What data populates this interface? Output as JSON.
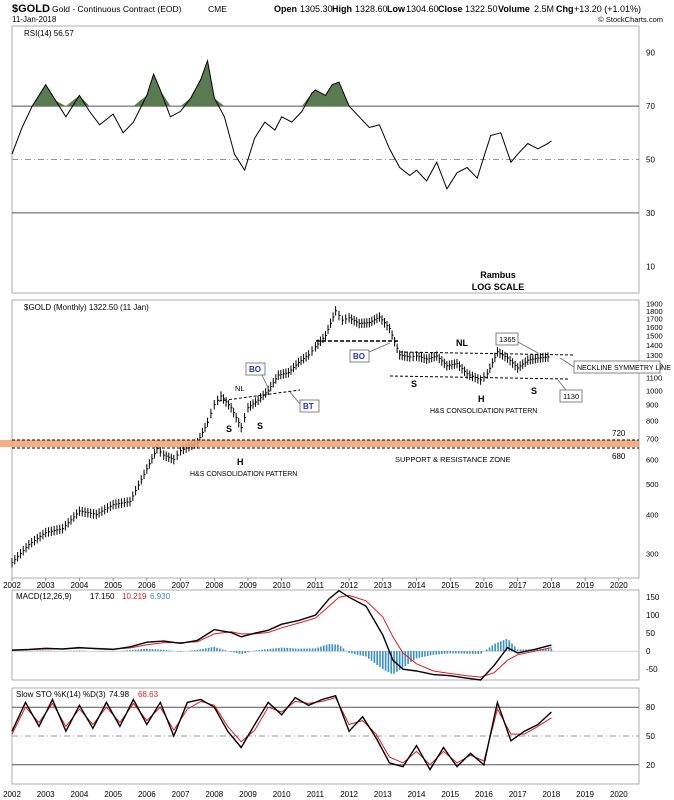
{
  "header": {
    "symbol": "$GOLD",
    "name": "Gold - Continuous Contract (EOD)",
    "exchange": "CME",
    "date": "11-Jan-2018",
    "open_label": "Open",
    "open": "1305.30",
    "high_label": "High",
    "high": "1328.60",
    "low_label": "Low",
    "low": "1304.60",
    "close_label": "Close",
    "close": "1322.50",
    "volume_label": "Volume",
    "volume": "2.5M",
    "chg_label": "Chg",
    "chg": "+13.20 (+1.01%)",
    "copyright": "© StockCharts.com"
  },
  "colors": {
    "price": "#000000",
    "rsi_fill": "#5a7a52",
    "macd_signal": "#e11b1b",
    "histogram": "#3a8fc4",
    "sto_d": "#e11b1b",
    "zone": "#f5a06c",
    "annotation_blue": "#2233bb"
  },
  "chart_data": [
    {
      "type": "line",
      "panel": "rsi",
      "legend": "RSI(14) 56.57",
      "ylim": [
        0,
        100
      ],
      "y_ticks": [
        "90",
        "70",
        "50",
        "30",
        "10"
      ],
      "reference_lines": [
        70,
        50,
        30
      ],
      "series": [
        {
          "x": [
            2002.0,
            2002.3,
            2002.6,
            2003.0,
            2003.3,
            2003.6,
            2004.0,
            2004.3,
            2004.6,
            2005.0,
            2005.3,
            2005.6,
            2006.0,
            2006.2,
            2006.4,
            2006.7,
            2007.0,
            2007.3,
            2007.6,
            2007.8,
            2008.0,
            2008.3,
            2008.6,
            2008.9,
            2009.2,
            2009.5,
            2009.8,
            2010.0,
            2010.3,
            2010.6,
            2010.9,
            2011.0,
            2011.3,
            2011.5,
            2011.7,
            2012.0,
            2012.3,
            2012.6,
            2012.9,
            2013.2,
            2013.5,
            2013.8,
            2014.0,
            2014.3,
            2014.6,
            2014.9,
            2015.2,
            2015.5,
            2015.8,
            2016.0,
            2016.2,
            2016.5,
            2016.8,
            2017.0,
            2017.3,
            2017.6,
            2017.9,
            2018.0
          ],
          "values": [
            52,
            62,
            70,
            78,
            72,
            66,
            74,
            68,
            63,
            67,
            60,
            64,
            74,
            82,
            76,
            66,
            68,
            73,
            80,
            87,
            73,
            66,
            52,
            46,
            58,
            64,
            61,
            66,
            64,
            68,
            75,
            76,
            74,
            78,
            79,
            70,
            66,
            62,
            63,
            54,
            47,
            44,
            46,
            42,
            49,
            39,
            45,
            47,
            43,
            51,
            59,
            60,
            49,
            52,
            56,
            54,
            56,
            57
          ]
        }
      ],
      "fill_above": 70
    },
    {
      "type": "line",
      "panel": "price",
      "legend": "$GOLD (Monthly) 1322.50 (11 Jan)",
      "scale": "log",
      "ylim": [
        250,
        1950
      ],
      "y_ticks": [
        "1900",
        "1800",
        "1700",
        "1600",
        "1500",
        "1400",
        "1300",
        "1200",
        "1100",
        "1000",
        "900",
        "800",
        "700",
        "600",
        "500",
        "400",
        "300"
      ],
      "x_ticks": [
        "2002",
        "2003",
        "2004",
        "2005",
        "2006",
        "2007",
        "2008",
        "2009",
        "2010",
        "2011",
        "2012",
        "2013",
        "2014",
        "2015",
        "2016",
        "2017",
        "2018",
        "2019",
        "2020"
      ],
      "series": [
        {
          "x": [
            2002.0,
            2002.5,
            2003.0,
            2003.5,
            2004.0,
            2004.5,
            2005.0,
            2005.5,
            2006.0,
            2006.3,
            2006.5,
            2006.8,
            2007.0,
            2007.5,
            2007.8,
            2008.0,
            2008.2,
            2008.5,
            2008.8,
            2009.0,
            2009.3,
            2009.6,
            2009.9,
            2010.2,
            2010.5,
            2010.8,
            2011.0,
            2011.3,
            2011.6,
            2011.8,
            2012.0,
            2012.3,
            2012.6,
            2012.9,
            2013.2,
            2013.5,
            2013.8,
            2014.0,
            2014.3,
            2014.6,
            2014.9,
            2015.2,
            2015.5,
            2015.9,
            2016.1,
            2016.4,
            2016.7,
            2017.0,
            2017.3,
            2017.6,
            2017.9,
            2018.0
          ],
          "values": [
            280,
            320,
            350,
            360,
            410,
            400,
            430,
            440,
            560,
            650,
            620,
            600,
            640,
            680,
            790,
            900,
            960,
            880,
            760,
            880,
            930,
            1000,
            1120,
            1140,
            1230,
            1300,
            1380,
            1500,
            1800,
            1680,
            1710,
            1640,
            1650,
            1720,
            1580,
            1300,
            1280,
            1290,
            1260,
            1290,
            1200,
            1220,
            1130,
            1080,
            1130,
            1330,
            1270,
            1180,
            1250,
            1270,
            1280,
            1322
          ]
        }
      ],
      "zone": {
        "top": 720,
        "bottom": 680,
        "label": "SUPPORT & RESISTANCE ZONE",
        "top_label": "720",
        "bottom_label": "680"
      },
      "annotations": {
        "rambus": "Rambus",
        "log_scale": "LOG SCALE",
        "nl_left": "NL",
        "s_left_1": "S",
        "s_left_2": "S",
        "h_left": "H",
        "bo_left": "BO",
        "bt_left": "BT",
        "hs_left": "H&S CONSOLIDATION PATTERN",
        "bo_mid": "BO",
        "nl_right": "NL",
        "s_right_1": "S",
        "h_right": "H",
        "s_right_2": "S",
        "hs_right": "H&S CONSOLIDATION PATTERN",
        "box_1365": "1365",
        "box_1130": "1130",
        "neckline_symmetry": "NECKLINE SYMMETRY LINE"
      }
    },
    {
      "type": "line",
      "panel": "macd",
      "legend_label": "MACD(12,26,9)",
      "legend_macd": "17.150",
      "legend_signal": "10.219",
      "legend_hist": "6.930",
      "ylim": [
        -80,
        170
      ],
      "y_ticks": [
        "150",
        "100",
        "50",
        "0",
        "-50"
      ],
      "series": [
        {
          "x": [
            2002.0,
            2002.5,
            2003.0,
            2003.5,
            2004.0,
            2004.5,
            2005.0,
            2005.5,
            2006.0,
            2006.5,
            2007.0,
            2007.5,
            2008.0,
            2008.5,
            2008.8,
            2009.2,
            2009.6,
            2010.0,
            2010.5,
            2011.0,
            2011.4,
            2011.7,
            2012.0,
            2012.5,
            2013.0,
            2013.3,
            2013.6,
            2014.0,
            2014.5,
            2015.0,
            2015.5,
            2015.9,
            2016.3,
            2016.7,
            2017.0,
            2017.5,
            2018.0
          ],
          "values": [
            3,
            5,
            8,
            6,
            10,
            7,
            5,
            12,
            25,
            28,
            22,
            30,
            60,
            52,
            40,
            50,
            58,
            75,
            85,
            100,
            145,
            168,
            150,
            125,
            45,
            -25,
            -50,
            -55,
            -65,
            -68,
            -75,
            -80,
            -40,
            10,
            -5,
            5,
            17
          ]
        },
        {
          "x": [
            2002.0,
            2002.5,
            2003.0,
            2003.5,
            2004.0,
            2004.5,
            2005.0,
            2005.5,
            2006.0,
            2006.5,
            2007.0,
            2007.5,
            2008.0,
            2008.5,
            2008.8,
            2009.2,
            2009.6,
            2010.0,
            2010.5,
            2011.0,
            2011.4,
            2011.7,
            2012.0,
            2012.5,
            2013.0,
            2013.3,
            2013.6,
            2014.0,
            2014.5,
            2015.0,
            2015.5,
            2015.9,
            2016.3,
            2016.7,
            2017.0,
            2017.5,
            2018.0
          ],
          "values": [
            2,
            4,
            6,
            6,
            8,
            8,
            6,
            9,
            18,
            24,
            24,
            26,
            48,
            54,
            48,
            48,
            52,
            65,
            78,
            92,
            125,
            150,
            155,
            140,
            95,
            40,
            -5,
            -35,
            -55,
            -62,
            -68,
            -72,
            -60,
            -25,
            -10,
            0,
            10
          ]
        }
      ]
    },
    {
      "type": "line",
      "panel": "sto",
      "legend_label": "Slow STO %K(14) %D(3)",
      "legend_k": "74.98",
      "legend_d": "68.63",
      "ylim": [
        0,
        100
      ],
      "y_ticks": [
        "80",
        "50",
        "20"
      ],
      "reference_lines": [
        80,
        50,
        20
      ],
      "series": [
        {
          "x": [
            2002.0,
            2002.4,
            2002.8,
            2003.2,
            2003.6,
            2004.0,
            2004.4,
            2004.8,
            2005.2,
            2005.6,
            2006.0,
            2006.4,
            2006.8,
            2007.2,
            2007.6,
            2008.0,
            2008.4,
            2008.8,
            2009.2,
            2009.6,
            2010.0,
            2010.4,
            2010.8,
            2011.2,
            2011.6,
            2012.0,
            2012.4,
            2012.8,
            2013.2,
            2013.6,
            2014.0,
            2014.4,
            2014.8,
            2015.2,
            2015.6,
            2016.0,
            2016.4,
            2016.8,
            2017.2,
            2017.6,
            2018.0
          ],
          "values": [
            55,
            85,
            60,
            88,
            55,
            82,
            58,
            85,
            60,
            88,
            62,
            85,
            50,
            85,
            88,
            80,
            55,
            38,
            62,
            85,
            72,
            90,
            82,
            88,
            92,
            55,
            70,
            48,
            22,
            18,
            40,
            15,
            38,
            18,
            32,
            20,
            85,
            45,
            55,
            62,
            75
          ]
        },
        {
          "x": [
            2002.0,
            2002.4,
            2002.8,
            2003.2,
            2003.6,
            2004.0,
            2004.4,
            2004.8,
            2005.2,
            2005.6,
            2006.0,
            2006.4,
            2006.8,
            2007.2,
            2007.6,
            2008.0,
            2008.4,
            2008.8,
            2009.2,
            2009.6,
            2010.0,
            2010.4,
            2010.8,
            2011.2,
            2011.6,
            2012.0,
            2012.4,
            2012.8,
            2013.2,
            2013.6,
            2014.0,
            2014.4,
            2014.8,
            2015.2,
            2015.6,
            2016.0,
            2016.4,
            2016.8,
            2017.2,
            2017.6,
            2018.0
          ],
          "values": [
            52,
            80,
            64,
            84,
            60,
            78,
            62,
            80,
            64,
            84,
            66,
            80,
            56,
            78,
            86,
            82,
            60,
            44,
            56,
            80,
            75,
            86,
            84,
            86,
            90,
            62,
            66,
            52,
            28,
            22,
            34,
            20,
            34,
            22,
            30,
            24,
            78,
            52,
            52,
            60,
            69
          ]
        }
      ]
    }
  ]
}
